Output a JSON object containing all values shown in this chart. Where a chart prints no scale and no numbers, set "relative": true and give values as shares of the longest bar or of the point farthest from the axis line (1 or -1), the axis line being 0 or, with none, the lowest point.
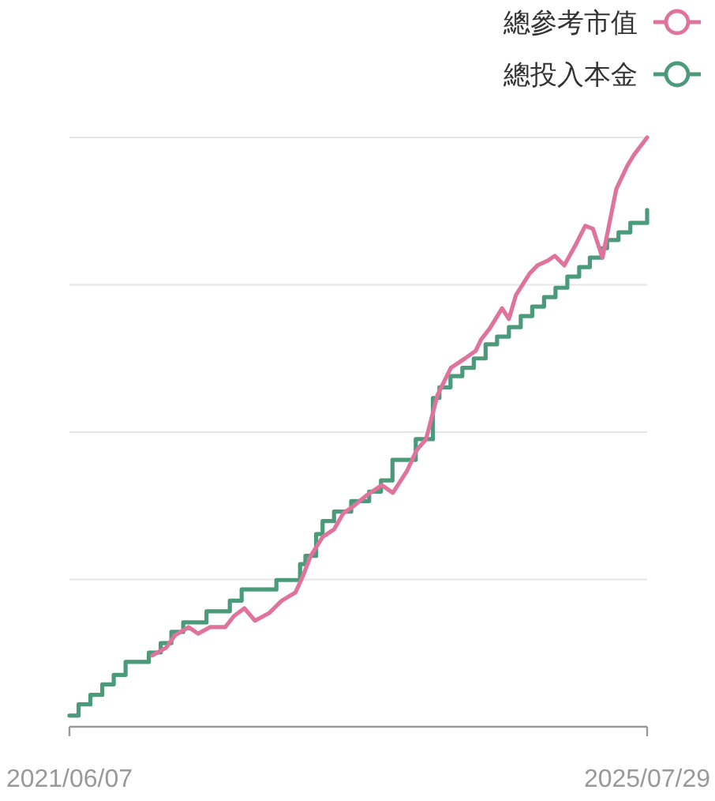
{
  "chart_data": {
    "type": "line",
    "relative": true,
    "grid": "y",
    "legend": "top right",
    "line_style": "solid",
    "xlim": [
      "2021-06-07",
      "2025-07-29"
    ],
    "xticks": [
      {
        "value": "2021-06-07",
        "label": "2021/06/07"
      },
      {
        "value": "2025-07-29",
        "label": "2025/07/29"
      }
    ],
    "series": [
      {
        "name": "總參考市值",
        "color": "#e0739b",
        "type": "line",
        "x": [
          "2022-01-10",
          "2022-02-15",
          "2022-03-10",
          "2022-04-15",
          "2022-05-10",
          "2022-06-10",
          "2022-07-20",
          "2022-08-12",
          "2022-09-08",
          "2022-10-06",
          "2022-11-12",
          "2022-12-15",
          "2023-01-20",
          "2023-02-08",
          "2023-03-01",
          "2023-04-01",
          "2023-05-01",
          "2023-05-25",
          "2023-06-22",
          "2023-07-28",
          "2023-09-03",
          "2023-10-02",
          "2023-11-08",
          "2023-12-03",
          "2023-12-28",
          "2024-01-27",
          "2024-03-02",
          "2024-04-08",
          "2024-05-06",
          "2024-05-20",
          "2024-06-12",
          "2024-07-14",
          "2024-08-01",
          "2024-08-19",
          "2024-09-24",
          "2024-10-15",
          "2024-11-11",
          "2024-11-29",
          "2024-12-24",
          "2025-01-23",
          "2025-02-17",
          "2025-03-09",
          "2025-04-03",
          "2025-04-14",
          "2025-05-09",
          "2025-06-07",
          "2025-06-25",
          "2025-07-29"
        ],
        "values": [
          0.121,
          0.134,
          0.155,
          0.169,
          0.158,
          0.169,
          0.169,
          0.188,
          0.201,
          0.18,
          0.193,
          0.214,
          0.228,
          0.255,
          0.29,
          0.322,
          0.335,
          0.362,
          0.375,
          0.394,
          0.41,
          0.397,
          0.434,
          0.469,
          0.488,
          0.563,
          0.609,
          0.625,
          0.638,
          0.657,
          0.676,
          0.71,
          0.692,
          0.732,
          0.769,
          0.783,
          0.791,
          0.799,
          0.783,
          0.818,
          0.85,
          0.845,
          0.796,
          0.831,
          0.912,
          0.952,
          0.971,
          1
        ]
      },
      {
        "name": "總投入本金",
        "color": "#4b9a7a",
        "type": "step",
        "x": [
          "2021-06-07",
          "2021-07-01",
          "2021-08-01",
          "2021-09-01",
          "2021-10-01",
          "2021-11-01",
          "2022-01-01",
          "2022-02-01",
          "2022-03-01",
          "2022-04-01",
          "2022-06-01",
          "2022-08-01",
          "2022-09-01",
          "2022-12-01",
          "2023-02-01",
          "2023-02-15",
          "2023-03-15",
          "2023-04-01",
          "2023-05-01",
          "2023-06-15",
          "2023-08-01",
          "2023-09-01",
          "2023-10-01",
          "2023-12-01",
          "2024-01-15",
          "2024-02-01",
          "2024-03-01",
          "2024-04-01",
          "2024-05-01",
          "2024-06-01",
          "2024-07-01",
          "2024-08-01",
          "2024-09-01",
          "2024-10-01",
          "2024-11-01",
          "2024-12-01",
          "2025-01-01",
          "2025-02-01",
          "2025-03-01",
          "2025-04-01",
          "2025-04-15",
          "2025-05-15",
          "2025-06-15",
          "2025-07-29"
        ],
        "values": [
          0.019,
          0.038,
          0.054,
          0.072,
          0.088,
          0.11,
          0.126,
          0.142,
          0.161,
          0.177,
          0.196,
          0.214,
          0.233,
          0.249,
          0.276,
          0.29,
          0.327,
          0.349,
          0.365,
          0.383,
          0.399,
          0.418,
          0.453,
          0.488,
          0.558,
          0.576,
          0.595,
          0.609,
          0.625,
          0.649,
          0.662,
          0.678,
          0.697,
          0.713,
          0.729,
          0.745,
          0.764,
          0.78,
          0.796,
          0.812,
          0.826,
          0.839,
          0.855,
          0.877
        ]
      }
    ]
  }
}
